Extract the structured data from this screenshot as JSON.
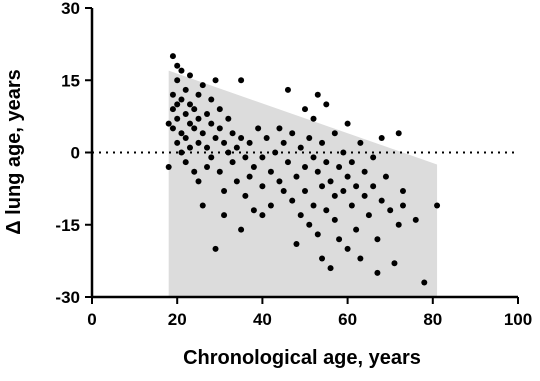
{
  "chart_data": {
    "type": "scatter",
    "xlabel": "Chronological age, years",
    "ylabel": "Δ lung age, years",
    "xlim": [
      0,
      100
    ],
    "xticks": [
      0,
      20,
      40,
      60,
      80,
      100
    ],
    "ylim": [
      -30,
      30
    ],
    "yticks": [
      -30,
      -15,
      0,
      15,
      30
    ],
    "reference_line": 0,
    "band": {
      "x": [
        18,
        81
      ],
      "upper": [
        17,
        -2.5
      ],
      "lower": [
        -30,
        -30
      ],
      "color": "#dcdcdc"
    },
    "series": [
      {
        "color": "#000000",
        "x": [
          18,
          18,
          19,
          19,
          19,
          19,
          20,
          20,
          20,
          20,
          20,
          21,
          21,
          21,
          21,
          22,
          22,
          22,
          22,
          23,
          23,
          23,
          23,
          24,
          24,
          24,
          25,
          25,
          25,
          25,
          26,
          26,
          26,
          27,
          27,
          27,
          28,
          28,
          28,
          29,
          29,
          29,
          30,
          30,
          30,
          31,
          31,
          31,
          32,
          32,
          33,
          33,
          34,
          34,
          35,
          35,
          35,
          36,
          36,
          37,
          37,
          38,
          38,
          39,
          40,
          40,
          40,
          41,
          42,
          42,
          43,
          44,
          44,
          45,
          45,
          46,
          46,
          47,
          47,
          48,
          48,
          49,
          49,
          50,
          50,
          50,
          51,
          51,
          52,
          52,
          52,
          53,
          53,
          53,
          54,
          54,
          54,
          55,
          55,
          55,
          56,
          56,
          57,
          57,
          57,
          58,
          58,
          59,
          59,
          60,
          60,
          60,
          61,
          61,
          62,
          62,
          63,
          63,
          64,
          64,
          65,
          66,
          66,
          67,
          67,
          68,
          68,
          69,
          70,
          71,
          72,
          72,
          73,
          73,
          76,
          78,
          81
        ],
        "values": [
          -3,
          6,
          20,
          12,
          9,
          5,
          18,
          15,
          10,
          7,
          2,
          17,
          11,
          4,
          0,
          13,
          8,
          3,
          -2,
          16,
          10,
          6,
          1,
          9,
          5,
          -4,
          12,
          7,
          2,
          -6,
          14,
          4,
          -11,
          8,
          1,
          -3,
          11,
          6,
          -1,
          15,
          3,
          -20,
          9,
          5,
          -4,
          2,
          -8,
          -13,
          7,
          0,
          4,
          -2,
          1,
          -6,
          15,
          3,
          -16,
          -1,
          -9,
          2,
          -5,
          -3,
          -12,
          5,
          -1,
          -7,
          -13,
          3,
          -4,
          -11,
          0,
          -6,
          5,
          -8,
          2,
          13,
          -2,
          -10,
          4,
          -5,
          -19,
          1,
          -13,
          9,
          -3,
          -8,
          3,
          -15,
          7,
          -1,
          -11,
          12,
          -4,
          -17,
          2,
          -7,
          -22,
          10,
          -2,
          -12,
          -6,
          -24,
          4,
          -9,
          -14,
          -3,
          -18,
          0,
          -8,
          6,
          -5,
          -20,
          -2,
          -11,
          -7,
          -16,
          2,
          -22,
          -9,
          -4,
          -13,
          -1,
          -7,
          -25,
          -18,
          3,
          -10,
          -5,
          -12,
          -23,
          4,
          -15,
          -8,
          -11,
          -14,
          -27,
          -11
        ]
      }
    ]
  }
}
